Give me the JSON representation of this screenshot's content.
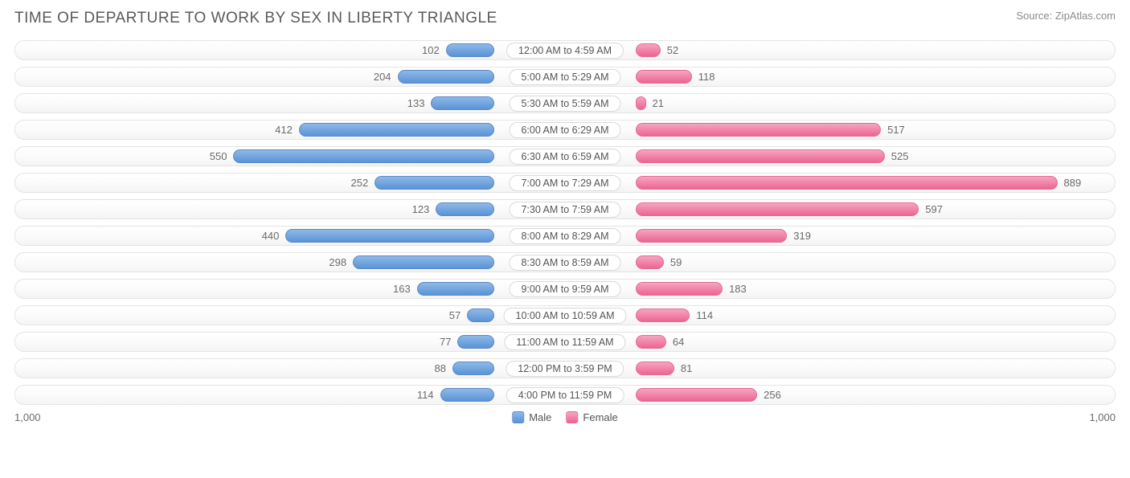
{
  "title": "TIME OF DEPARTURE TO WORK BY SEX IN LIBERTY TRIANGLE",
  "source": "Source: ZipAtlas.com",
  "chart": {
    "type": "diverging-bar",
    "axis_max": 1000,
    "axis_label_left": "1,000",
    "axis_label_right": "1,000",
    "male_color_top": "#8fb9e8",
    "male_color_bottom": "#5a93d6",
    "male_border": "#5a8ac7",
    "female_color_top": "#f6a5c0",
    "female_color_bottom": "#ec6594",
    "female_border": "#e56a95",
    "row_bg_top": "#ffffff",
    "row_bg_bottom": "#f4f4f4",
    "row_border": "#e4e4e4",
    "label_bg": "#ffffff",
    "label_border": "#d9d9d9",
    "text_color": "#6a6a6a",
    "title_color": "#5a5a5a",
    "rows": [
      {
        "label": "12:00 AM to 4:59 AM",
        "male": 102,
        "female": 52
      },
      {
        "label": "5:00 AM to 5:29 AM",
        "male": 204,
        "female": 118
      },
      {
        "label": "5:30 AM to 5:59 AM",
        "male": 133,
        "female": 21
      },
      {
        "label": "6:00 AM to 6:29 AM",
        "male": 412,
        "female": 517
      },
      {
        "label": "6:30 AM to 6:59 AM",
        "male": 550,
        "female": 525
      },
      {
        "label": "7:00 AM to 7:29 AM",
        "male": 252,
        "female": 889
      },
      {
        "label": "7:30 AM to 7:59 AM",
        "male": 123,
        "female": 597
      },
      {
        "label": "8:00 AM to 8:29 AM",
        "male": 440,
        "female": 319
      },
      {
        "label": "8:30 AM to 8:59 AM",
        "male": 298,
        "female": 59
      },
      {
        "label": "9:00 AM to 9:59 AM",
        "male": 163,
        "female": 183
      },
      {
        "label": "10:00 AM to 10:59 AM",
        "male": 57,
        "female": 114
      },
      {
        "label": "11:00 AM to 11:59 AM",
        "male": 77,
        "female": 64
      },
      {
        "label": "12:00 PM to 3:59 PM",
        "male": 88,
        "female": 81
      },
      {
        "label": "4:00 PM to 11:59 PM",
        "male": 114,
        "female": 256
      }
    ],
    "legend": {
      "male": "Male",
      "female": "Female"
    }
  }
}
